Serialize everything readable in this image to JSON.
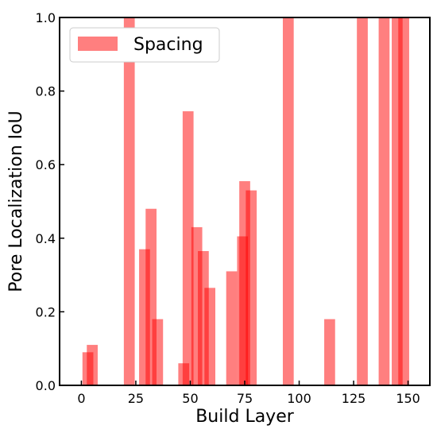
{
  "chart_data": {
    "type": "bar",
    "xlabel": "Build Layer",
    "ylabel": "Pore Localization IoU",
    "xlim": [
      -10,
      160
    ],
    "ylim": [
      0,
      1
    ],
    "xticks": [
      0,
      25,
      50,
      75,
      100,
      125,
      150
    ],
    "yticks": [
      0.0,
      0.2,
      0.4,
      0.6,
      0.8,
      1.0
    ],
    "xtick_labels": [
      "0",
      "25",
      "50",
      "75",
      "100",
      "125",
      "150"
    ],
    "ytick_labels": [
      "0.0",
      "0.2",
      "0.4",
      "0.6",
      "0.8",
      "1.0"
    ],
    "bar_width": 5,
    "legend": {
      "placement": "upper-left"
    },
    "grid": false,
    "series": [
      {
        "name": "Spacing",
        "color": "#ff0000",
        "opacity": 0.5,
        "x": [
          3,
          5,
          22,
          29,
          32,
          35,
          47,
          49,
          53,
          56,
          59,
          69,
          74,
          75,
          78,
          95,
          114,
          129,
          139,
          145,
          148
        ],
        "values": [
          0.09,
          0.11,
          1.0,
          0.37,
          0.48,
          0.18,
          0.06,
          0.745,
          0.43,
          0.365,
          0.265,
          0.31,
          0.405,
          0.555,
          0.53,
          1.0,
          0.18,
          1.0,
          1.0,
          1.0,
          1.0
        ]
      }
    ]
  }
}
